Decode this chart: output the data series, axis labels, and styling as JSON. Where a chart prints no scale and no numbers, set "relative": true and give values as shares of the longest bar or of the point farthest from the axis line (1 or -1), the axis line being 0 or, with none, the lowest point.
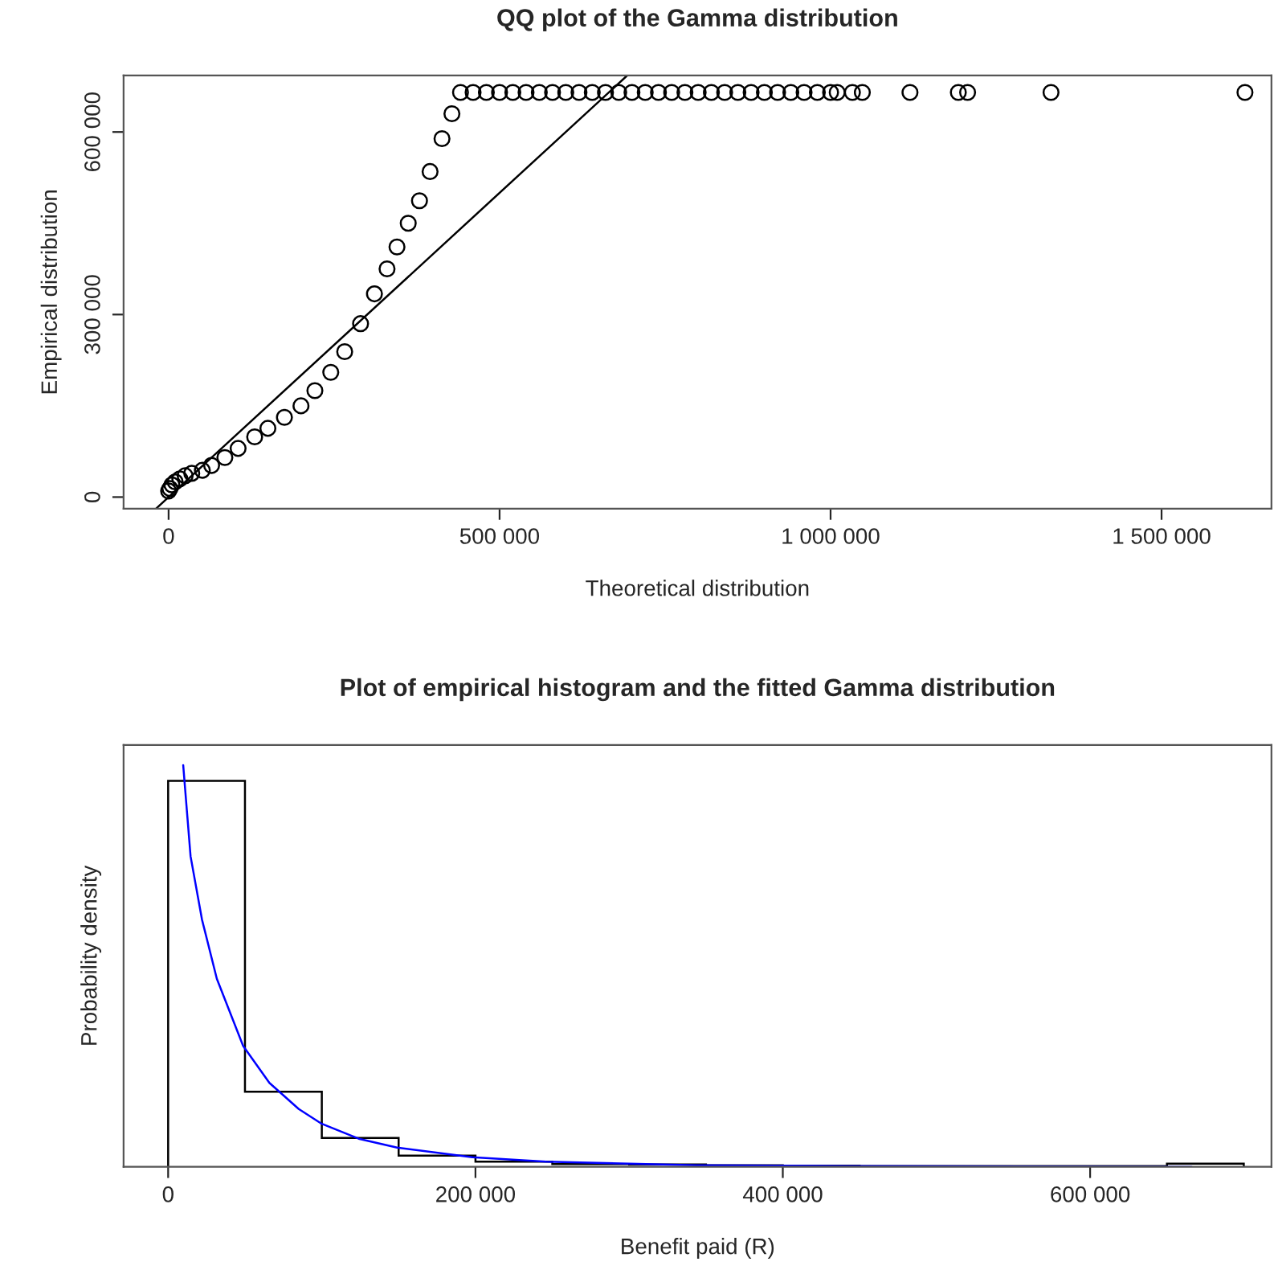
{
  "chart_data": [
    {
      "type": "scatter",
      "title": "QQ plot of the Gamma distribution",
      "xlabel": "Theoretical distribution",
      "ylabel": "Empirical distribution",
      "xlim": [
        -68000,
        1666000
      ],
      "ylim": [
        -19000,
        693000
      ],
      "xticks": [
        {
          "value": 0,
          "label": "0"
        },
        {
          "value": 500000,
          "label": "500 000"
        },
        {
          "value": 1000000,
          "label": "1 000 000"
        },
        {
          "value": 1500000,
          "label": "1 500 000"
        }
      ],
      "yticks": [
        {
          "value": 0,
          "label": "0"
        },
        {
          "value": 300000,
          "label": "300 000"
        },
        {
          "value": 600000,
          "label": "600 000"
        }
      ],
      "marker": "circle",
      "grid": false,
      "legend": false,
      "series": [
        {
          "type": "scatter",
          "color": "#000000",
          "x": [
            0,
            2000,
            5000,
            10000,
            17000,
            25000,
            35000,
            51000,
            65000,
            85000,
            105000,
            130000,
            150000,
            175000,
            200000,
            221000,
            245000,
            266000,
            290000,
            311000,
            330000,
            345000,
            362000,
            379000,
            395000,
            413000,
            428000,
            441000,
            460000,
            480000,
            500000,
            520000,
            540000,
            560000,
            580000,
            600000,
            620000,
            640000,
            660000,
            680000,
            700000,
            720000,
            740000,
            760000,
            780000,
            800000,
            820000,
            840000,
            860000,
            880000,
            900000,
            920000,
            940000,
            960000,
            980000,
            1000000,
            1010000,
            1033000,
            1048000,
            1120000,
            1193000,
            1207000,
            1333000,
            1626000
          ],
          "values": [
            10000,
            14000,
            20000,
            25000,
            30000,
            35000,
            39000,
            44000,
            52000,
            65000,
            80000,
            99000,
            113000,
            131000,
            150000,
            175000,
            205000,
            239000,
            285000,
            334000,
            375000,
            411000,
            450000,
            487000,
            535000,
            589000,
            630000,
            665000,
            665000,
            665000,
            665000,
            665000,
            665000,
            665000,
            665000,
            665000,
            665000,
            665000,
            665000,
            665000,
            665000,
            665000,
            665000,
            665000,
            665000,
            665000,
            665000,
            665000,
            665000,
            665000,
            665000,
            665000,
            665000,
            665000,
            665000,
            665000,
            665000,
            665000,
            665000,
            665000,
            665000,
            665000,
            665000,
            665000
          ]
        },
        {
          "type": "line",
          "color": "#000000",
          "line_style": "solid",
          "marker": "none",
          "x": [
            -19000,
            693000
          ],
          "values": [
            -19000,
            693000
          ]
        }
      ]
    },
    {
      "type": "histogram",
      "title": "Plot of empirical histogram and the fitted Gamma distribution",
      "xlabel": "Benefit paid (R)",
      "ylabel": "Probability density",
      "relative": true,
      "tick_labels": "x",
      "grid": false,
      "legend": false,
      "xlim": [
        -29000,
        718000
      ],
      "xticks": [
        {
          "value": 0,
          "label": "0"
        },
        {
          "value": 200000,
          "label": "200 000"
        },
        {
          "value": 400000,
          "label": "400 000"
        },
        {
          "value": 600000,
          "label": "600 000"
        }
      ],
      "bins": [
        0,
        50000,
        100000,
        150000,
        200000,
        250000,
        300000,
        350000,
        400000,
        450000,
        500000,
        550000,
        600000,
        650000,
        700000
      ],
      "values": [
        0.961,
        0.187,
        0.072,
        0.028,
        0.013,
        0.007,
        0.006,
        0.004,
        0.003,
        0.002,
        0.002,
        0.002,
        0.002,
        0.008
      ],
      "color": "#000000",
      "series": [
        {
          "type": "line",
          "color": "#0000ff",
          "line_style": "solid",
          "x": [
            9800,
            14600,
            22000,
            31700,
            48800,
            65900,
            85000,
            100000,
            124000,
            149000,
            198000,
            246000,
            344000,
            441000,
            666000
          ],
          "values": [
            1.0,
            0.773,
            0.616,
            0.468,
            0.301,
            0.209,
            0.144,
            0.107,
            0.07,
            0.048,
            0.024,
            0.013,
            0.004,
            0.002,
            0.0
          ]
        }
      ]
    }
  ]
}
